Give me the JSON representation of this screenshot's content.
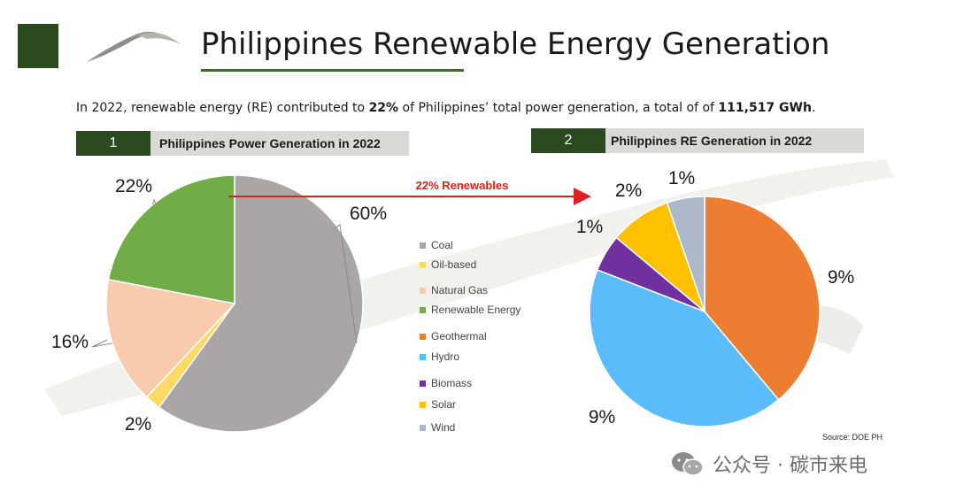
{
  "header": {
    "title": "Philippines Renewable Energy Generation"
  },
  "intro": {
    "prefix": "In 2022, renewable energy (RE) contributed to ",
    "share": "22%",
    "middle": " of Philippines’ total power generation, a total of of ",
    "total": "111,517 GWh",
    "suffix": "."
  },
  "sections": [
    {
      "number": "1",
      "label": "Philippines Power Generation in 2022"
    },
    {
      "number": "2",
      "label": "Philippines RE Generation in 2022"
    }
  ],
  "arrow_label": "22% Renewables",
  "legend": [
    {
      "label": "Coal",
      "color": "#aaa6a5"
    },
    {
      "label": "Oil-based",
      "color": "#ffd966"
    },
    {
      "label": "Natural Gas",
      "color": "#f8cbad"
    },
    {
      "label": "Renewable Energy",
      "color": "#70ad47"
    },
    {
      "label": "Geothermal",
      "color": "#ed7d31"
    },
    {
      "label": "Hydro",
      "color": "#5bbcfb"
    },
    {
      "label": "Biomass",
      "color": "#7030a0"
    },
    {
      "label": "Solar",
      "color": "#ffc000"
    },
    {
      "label": "Wind",
      "color": "#adb9ca"
    }
  ],
  "chart_data": [
    {
      "type": "pie",
      "title": "Philippines Power Generation in 2022",
      "categories": [
        "Coal",
        "Oil-based",
        "Natural Gas",
        "Renewable Energy"
      ],
      "values": [
        60,
        2,
        16,
        22
      ],
      "labels": [
        "60%",
        "2%",
        "16%",
        "22%"
      ],
      "colors": [
        "#aaa6a5",
        "#ffd966",
        "#f8cbad",
        "#70ad47"
      ]
    },
    {
      "type": "pie",
      "title": "Philippines RE Generation in 2022",
      "categories": [
        "Geothermal",
        "Hydro",
        "Biomass",
        "Solar",
        "Wind"
      ],
      "values": [
        9,
        9,
        1,
        2,
        1
      ],
      "labels": [
        "9%",
        "9%",
        "1%",
        "2%",
        "1%"
      ],
      "slice_fractions": [
        0.389,
        0.42,
        0.052,
        0.086,
        0.053
      ],
      "colors": [
        "#ed7d31",
        "#5bbcfb",
        "#7030a0",
        "#ffc000",
        "#adb9ca"
      ]
    }
  ],
  "source": "Source: DOE PH",
  "watermark": "公众号 · 碳市来电"
}
